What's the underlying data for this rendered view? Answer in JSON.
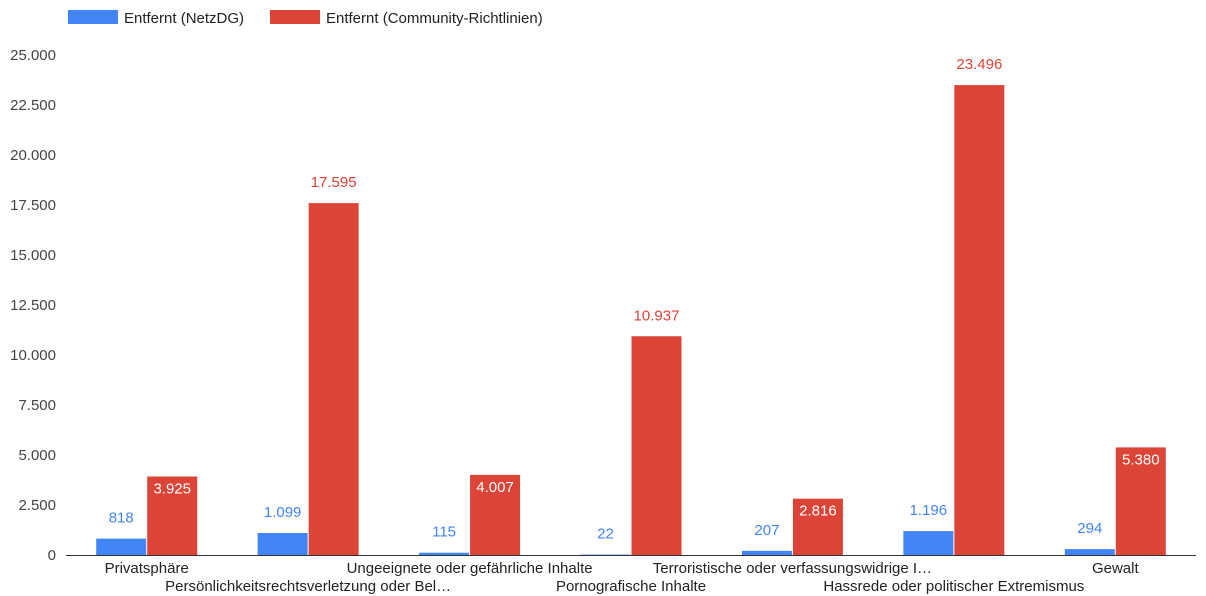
{
  "chart_data": {
    "type": "bar",
    "title": "",
    "xlabel": "",
    "ylabel": "",
    "categories": [
      "Privatsphäre",
      "Persönlichkeitsrechtsverletzung oder Bel…",
      "Ungeeignete oder gefährliche Inhalte",
      "Pornografische Inhalte",
      "Terroristische oder verfassungswidrige I…",
      "Hassrede oder politischer Extremismus",
      "Gewalt"
    ],
    "series": [
      {
        "name": "Entfernt (NetzDG)",
        "color": "#4285f4",
        "values": [
          818,
          1099,
          115,
          22,
          207,
          1196,
          294
        ],
        "labels": [
          "818",
          "1.099",
          "115",
          "22",
          "207",
          "1.196",
          "294"
        ]
      },
      {
        "name": "Entfernt (Community-Richtlinien)",
        "color": "#db4437",
        "values": [
          3925,
          17595,
          4007,
          10937,
          2816,
          23496,
          5380
        ],
        "labels": [
          "3.925",
          "17.595",
          "4.007",
          "10.937",
          "2.816",
          "23.496",
          "5.380"
        ]
      }
    ],
    "ylim": [
      0,
      25000
    ],
    "yticks": [
      0,
      2500,
      5000,
      7500,
      10000,
      12500,
      15000,
      17500,
      20000,
      22500,
      25000
    ],
    "ytick_labels": [
      "0",
      "2.500",
      "5.000",
      "7.500",
      "10.000",
      "12.500",
      "15.000",
      "17.500",
      "20.000",
      "22.500",
      "25.000"
    ],
    "legend": "top-left",
    "grid": false
  }
}
